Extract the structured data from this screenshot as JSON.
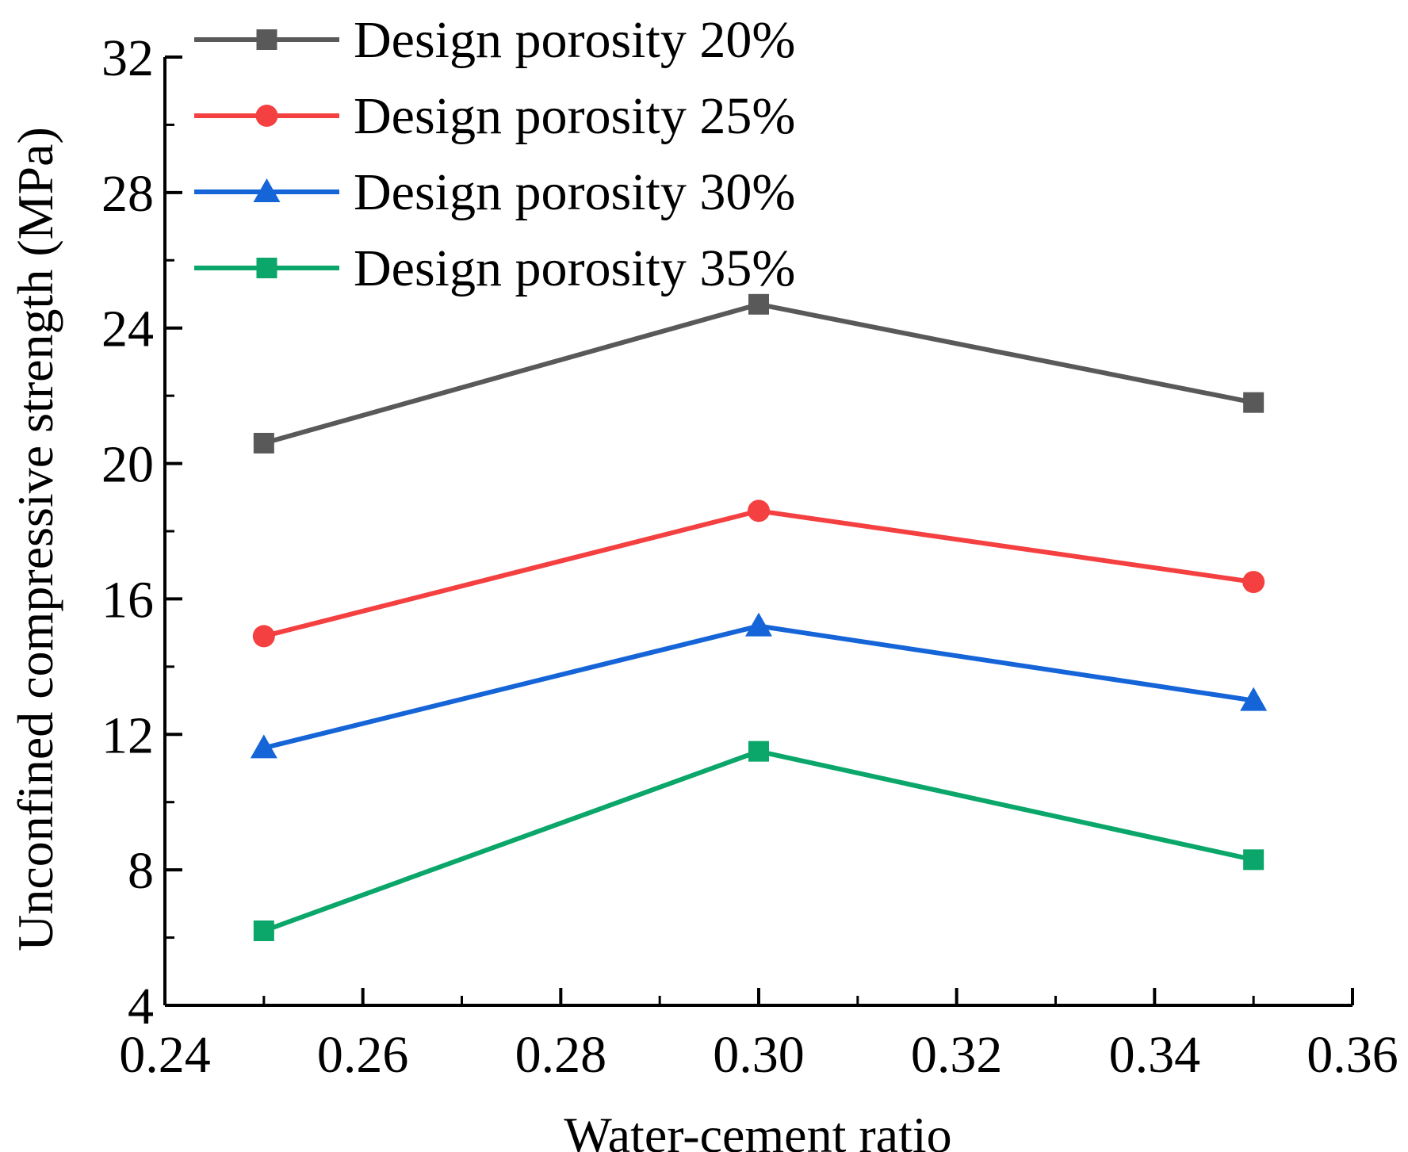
{
  "chart_data": {
    "type": "line",
    "title": "",
    "xlabel": "Water-cement ratio",
    "ylabel": "Unconfined compressive strength (MPa)",
    "xlim": [
      0.24,
      0.36
    ],
    "ylim": [
      4,
      32
    ],
    "xticks": [
      "0.24",
      "0.26",
      "0.28",
      "0.30",
      "0.32",
      "0.34",
      "0.36"
    ],
    "yticks": [
      "4",
      "8",
      "12",
      "16",
      "20",
      "24",
      "28",
      "32"
    ],
    "x": [
      0.25,
      0.3,
      0.35
    ],
    "grid": false,
    "legend_position": "top-left",
    "series": [
      {
        "name": "Design porosity 20%",
        "marker": "square",
        "color": "#595959",
        "values": [
          20.6,
          24.7,
          21.8
        ]
      },
      {
        "name": "Design porosity 25%",
        "marker": "circle",
        "color": "#f44040",
        "values": [
          14.9,
          18.6,
          16.5
        ]
      },
      {
        "name": "Design porosity 30%",
        "marker": "triangle",
        "color": "#1565d8",
        "values": [
          11.6,
          15.2,
          13.0
        ]
      },
      {
        "name": "Design porosity 35%",
        "marker": "square",
        "color": "#0aa66a",
        "values": [
          6.2,
          11.5,
          8.3
        ]
      }
    ]
  }
}
